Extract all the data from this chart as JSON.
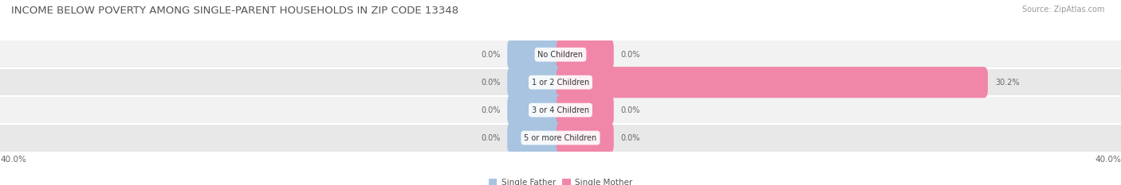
{
  "title": "INCOME BELOW POVERTY AMONG SINGLE-PARENT HOUSEHOLDS IN ZIP CODE 13348",
  "source": "Source: ZipAtlas.com",
  "categories": [
    "No Children",
    "1 or 2 Children",
    "3 or 4 Children",
    "5 or more Children"
  ],
  "single_father": [
    0.0,
    0.0,
    0.0,
    0.0
  ],
  "single_mother": [
    0.0,
    30.2,
    0.0,
    0.0
  ],
  "father_color": "#a8c4e0",
  "mother_color": "#f087a8",
  "stub_size": 3.5,
  "axis_limit": 40.0,
  "title_fontsize": 9.5,
  "source_fontsize": 7,
  "category_fontsize": 7,
  "legend_fontsize": 7.5,
  "value_fontsize": 7,
  "axis_label_fontsize": 7.5,
  "background_color": "#ffffff",
  "row_colors": [
    "#f2f2f2",
    "#e8e8e8"
  ],
  "bar_height": 0.52,
  "title_color": "#555555",
  "value_color": "#666666",
  "source_color": "#999999"
}
